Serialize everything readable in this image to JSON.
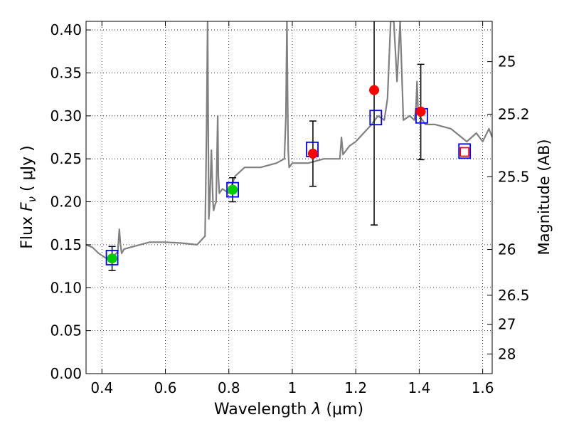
{
  "chart_data": {
    "type": "scatter",
    "title": "",
    "xlabel": "Wavelength",
    "xlabel_symbol": "λ",
    "xlabel_unit": "(μm)",
    "ylabel": "Flux",
    "ylabel_symbol": "F",
    "ylabel_symbol_sub": "ν",
    "ylabel_unit": "( μJy )",
    "y2label": "Magnitude (AB)",
    "xlim": [
      0.35,
      1.63
    ],
    "ylim": [
      0.0,
      0.41
    ],
    "x_ticks": [
      0.4,
      0.6,
      0.8,
      1.0,
      1.2,
      1.4,
      1.6
    ],
    "x_tick_labels": [
      "0.4",
      "0.6",
      "0.8",
      "1",
      "1.2",
      "1.4",
      "1.6"
    ],
    "y_ticks": [
      0.0,
      0.05,
      0.1,
      0.15,
      0.2,
      0.25,
      0.3,
      0.35,
      0.4
    ],
    "y_tick_labels": [
      "0.00",
      "0.05",
      "0.10",
      "0.15",
      "0.20",
      "0.25",
      "0.30",
      "0.35",
      "0.40"
    ],
    "mag_ticks": [
      {
        "label": "25",
        "flux": 0.3631
      },
      {
        "label": "25.2",
        "flux": 0.302
      },
      {
        "label": "25.5",
        "flux": 0.2291
      },
      {
        "label": "26",
        "flux": 0.1445
      },
      {
        "label": "26.5",
        "flux": 0.0912
      },
      {
        "label": "27",
        "flux": 0.0575
      },
      {
        "label": "28",
        "flux": 0.0229
      }
    ],
    "grid": true,
    "colors": {
      "spectrum": "#808080",
      "observed": "#ff0000",
      "optical": "#00cc00",
      "model_box": "#0000ff",
      "errorbar": "#000000"
    },
    "series": [
      {
        "kind": "spectrum",
        "x": [
          0.35,
          0.37,
          0.39,
          0.41,
          0.43,
          0.44,
          0.45,
          0.455,
          0.458,
          0.462,
          0.47,
          0.5,
          0.55,
          0.6,
          0.65,
          0.7,
          0.725,
          0.73,
          0.733,
          0.735,
          0.737,
          0.74,
          0.745,
          0.75,
          0.752,
          0.755,
          0.76,
          0.765,
          0.767,
          0.77,
          0.78,
          0.8,
          0.82,
          0.85,
          0.9,
          0.95,
          0.975,
          0.98,
          0.983,
          0.985,
          0.987,
          0.99,
          1.0,
          1.05,
          1.1,
          1.15,
          1.155,
          1.16,
          1.18,
          1.2,
          1.23,
          1.25,
          1.27,
          1.29,
          1.3,
          1.31,
          1.32,
          1.33,
          1.34,
          1.35,
          1.37,
          1.385,
          1.39,
          1.393,
          1.396,
          1.4,
          1.42,
          1.45,
          1.5,
          1.55,
          1.58,
          1.6,
          1.62,
          1.63
        ],
        "y": [
          0.15,
          0.147,
          0.14,
          0.135,
          0.133,
          0.138,
          0.142,
          0.168,
          0.152,
          0.14,
          0.145,
          0.148,
          0.153,
          0.153,
          0.152,
          0.15,
          0.16,
          0.29,
          0.41,
          0.3,
          0.18,
          0.2,
          0.26,
          0.2,
          0.19,
          0.195,
          0.2,
          0.3,
          0.23,
          0.21,
          0.215,
          0.21,
          0.23,
          0.24,
          0.24,
          0.245,
          0.25,
          0.3,
          0.41,
          0.33,
          0.26,
          0.24,
          0.245,
          0.245,
          0.25,
          0.25,
          0.275,
          0.255,
          0.265,
          0.27,
          0.282,
          0.29,
          0.3,
          0.295,
          0.32,
          0.41,
          0.41,
          0.34,
          0.41,
          0.295,
          0.3,
          0.295,
          0.31,
          0.34,
          0.31,
          0.3,
          0.29,
          0.29,
          0.285,
          0.27,
          0.28,
          0.27,
          0.285,
          0.275
        ]
      },
      {
        "kind": "observed",
        "points": [
          {
            "x": 1.065,
            "y": 0.256,
            "ylow": 0.218,
            "yhigh": 0.294
          },
          {
            "x": 1.258,
            "y": 0.33,
            "ylow": 0.173,
            "yhigh": 0.42
          },
          {
            "x": 1.405,
            "y": 0.305,
            "ylow": 0.249,
            "yhigh": 0.36
          },
          {
            "x": 1.543,
            "y": 0.258
          }
        ]
      },
      {
        "kind": "optical",
        "points": [
          {
            "x": 0.432,
            "y": 0.134,
            "ylow": 0.12,
            "yhigh": 0.148
          },
          {
            "x": 0.812,
            "y": 0.214,
            "ylow": 0.2,
            "yhigh": 0.228
          }
        ]
      },
      {
        "kind": "model",
        "points": [
          {
            "x": 0.432,
            "y": 0.135
          },
          {
            "x": 0.812,
            "y": 0.214
          },
          {
            "x": 1.063,
            "y": 0.261
          },
          {
            "x": 1.263,
            "y": 0.298
          },
          {
            "x": 1.408,
            "y": 0.3
          },
          {
            "x": 1.543,
            "y": 0.259
          }
        ]
      }
    ]
  }
}
